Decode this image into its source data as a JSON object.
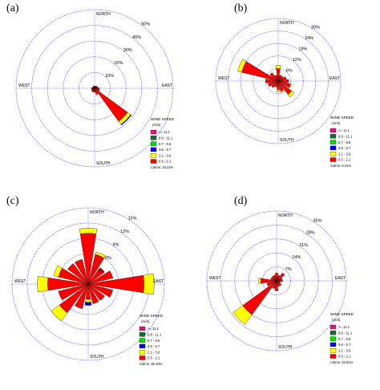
{
  "chart_data": [
    {
      "type": "wind-rose",
      "panel_label": "(a)",
      "directions": [
        "NORTH",
        "EAST",
        "SOUTH",
        "WEST"
      ],
      "ring_labels": [
        "10%",
        "20%",
        "30%",
        "40%",
        "50%"
      ],
      "ring_max": 50,
      "legend_title": "WIND SPEED",
      "legend_unit": "(m/s)",
      "calms": "Calms: 18.22%",
      "petals": [
        {
          "bearing": 135,
          "values": [
            26,
            2.5,
            0.5
          ]
        },
        {
          "bearing": 157.5,
          "values": [
            4,
            0.5
          ]
        },
        {
          "bearing": 112.5,
          "values": [
            3,
            0.5
          ]
        },
        {
          "bearing": 180,
          "values": [
            2.5
          ]
        },
        {
          "bearing": 202.5,
          "values": [
            2.5
          ]
        },
        {
          "bearing": 225,
          "values": [
            2.5
          ]
        },
        {
          "bearing": 247.5,
          "values": [
            2
          ]
        },
        {
          "bearing": 270,
          "values": [
            2
          ]
        },
        {
          "bearing": 292.5,
          "values": [
            1.5
          ]
        },
        {
          "bearing": 315,
          "values": [
            1.5
          ]
        },
        {
          "bearing": 337.5,
          "values": [
            1.5
          ]
        },
        {
          "bearing": 0,
          "values": [
            1.5
          ]
        },
        {
          "bearing": 22.5,
          "values": [
            1.5
          ]
        },
        {
          "bearing": 45,
          "values": [
            2
          ]
        },
        {
          "bearing": 67.5,
          "values": [
            2
          ]
        },
        {
          "bearing": 90,
          "values": [
            3
          ]
        }
      ]
    },
    {
      "type": "wind-rose",
      "panel_label": "(b)",
      "directions": [
        "NORTH",
        "EAST",
        "SOUTH",
        "WEST"
      ],
      "ring_labels": [
        "6%",
        "12%",
        "18%",
        "24%",
        "30%"
      ],
      "ring_max": 30,
      "legend_title": "WIND SPEED",
      "legend_unit": "(m/s)",
      "calms": "Calms: 8.41%",
      "petals": [
        {
          "bearing": 292.5,
          "values": [
            18,
            2
          ]
        },
        {
          "bearing": 270,
          "values": [
            6
          ]
        },
        {
          "bearing": 315,
          "values": [
            5
          ]
        },
        {
          "bearing": 0,
          "values": [
            6,
            1.5
          ]
        },
        {
          "bearing": 135,
          "values": [
            8,
            1.5
          ]
        },
        {
          "bearing": 112.5,
          "values": [
            6,
            0.5
          ]
        },
        {
          "bearing": 157.5,
          "values": [
            5,
            0.5
          ]
        },
        {
          "bearing": 180,
          "values": [
            4,
            1
          ]
        },
        {
          "bearing": 202.5,
          "values": [
            3
          ]
        },
        {
          "bearing": 225,
          "values": [
            4
          ]
        },
        {
          "bearing": 247.5,
          "values": [
            5
          ]
        },
        {
          "bearing": 337.5,
          "values": [
            3
          ]
        },
        {
          "bearing": 22.5,
          "values": [
            3
          ]
        },
        {
          "bearing": 45,
          "values": [
            3
          ]
        },
        {
          "bearing": 67.5,
          "values": [
            4
          ]
        },
        {
          "bearing": 90,
          "values": [
            5
          ]
        }
      ]
    },
    {
      "type": "wind-rose",
      "panel_label": "(c)",
      "directions": [
        "NORTH",
        "EAST",
        "SOUTH",
        "WEST"
      ],
      "ring_labels": [
        "3%",
        "6%",
        "9%",
        "12%",
        "15%"
      ],
      "ring_max": 15,
      "legend_title": "WIND SPEED",
      "legend_unit": "(m/s)",
      "calms": "Calms: 36.10%",
      "petals": [
        {
          "bearing": 0,
          "values": [
            10,
            1
          ]
        },
        {
          "bearing": 90,
          "values": [
            11,
            2
          ]
        },
        {
          "bearing": 270,
          "values": [
            8,
            2
          ]
        },
        {
          "bearing": 225,
          "values": [
            7,
            2
          ]
        },
        {
          "bearing": 292.5,
          "values": [
            6,
            1
          ]
        },
        {
          "bearing": 22.5,
          "values": [
            6,
            0.5
          ]
        },
        {
          "bearing": 45,
          "values": [
            4
          ]
        },
        {
          "bearing": 67.5,
          "values": [
            5
          ]
        },
        {
          "bearing": 112.5,
          "values": [
            5
          ]
        },
        {
          "bearing": 135,
          "values": [
            4
          ]
        },
        {
          "bearing": 157.5,
          "values": [
            4
          ]
        },
        {
          "bearing": 180,
          "values": [
            3,
            0.6,
            0.6
          ]
        },
        {
          "bearing": 202.5,
          "values": [
            5
          ]
        },
        {
          "bearing": 247.5,
          "values": [
            6
          ]
        },
        {
          "bearing": 315,
          "values": [
            5
          ]
        },
        {
          "bearing": 337.5,
          "values": [
            5
          ]
        }
      ]
    },
    {
      "type": "wind-rose",
      "panel_label": "(d)",
      "directions": [
        "NORTH",
        "EAST",
        "SOUTH",
        "WEST"
      ],
      "ring_labels": [
        "7%",
        "14%",
        "21%",
        "28%",
        "35%"
      ],
      "ring_max": 35,
      "legend_title": "WIND SPEED",
      "legend_unit": "(m/s)",
      "calms": "Calms: 23.81%",
      "petals": [
        {
          "bearing": 225,
          "values": [
            21,
            6
          ]
        },
        {
          "bearing": 270,
          "values": [
            8,
            1
          ]
        },
        {
          "bearing": 180,
          "values": [
            5
          ]
        },
        {
          "bearing": 0,
          "values": [
            4
          ]
        },
        {
          "bearing": 45,
          "values": [
            5
          ]
        },
        {
          "bearing": 90,
          "values": [
            3
          ]
        },
        {
          "bearing": 135,
          "values": [
            3
          ]
        },
        {
          "bearing": 202.5,
          "values": [
            4
          ]
        },
        {
          "bearing": 247.5,
          "values": [
            5
          ]
        },
        {
          "bearing": 292.5,
          "values": [
            3
          ]
        },
        {
          "bearing": 315,
          "values": [
            3
          ]
        },
        {
          "bearing": 337.5,
          "values": [
            3
          ]
        },
        {
          "bearing": 22.5,
          "values": [
            3
          ]
        },
        {
          "bearing": 67.5,
          "values": [
            3
          ]
        },
        {
          "bearing": 112.5,
          "values": [
            2
          ]
        },
        {
          "bearing": 157.5,
          "values": [
            3
          ]
        }
      ]
    }
  ],
  "legend_bins": [
    {
      "label": ">= 11.1",
      "color": "#e0157e"
    },
    {
      "label": "8.8 - 11.1",
      "color": "#1d6b2a"
    },
    {
      "label": "5.7 - 8.8",
      "color": "#00e000"
    },
    {
      "label": "3.6 - 5.7",
      "color": "#0000ff"
    },
    {
      "label": "2.1 - 3.6",
      "color": "#ffff00"
    },
    {
      "label": "0.5 - 2.1",
      "color": "#ff0000"
    }
  ],
  "style": {
    "ring_color": "#2a2ad0",
    "bin_order_inner_to_outer": [
      "0.5 - 2.1",
      "2.1 - 3.6",
      "3.6 - 5.7",
      "5.7 - 8.8",
      "8.8 - 11.1",
      ">= 11.1"
    ]
  }
}
